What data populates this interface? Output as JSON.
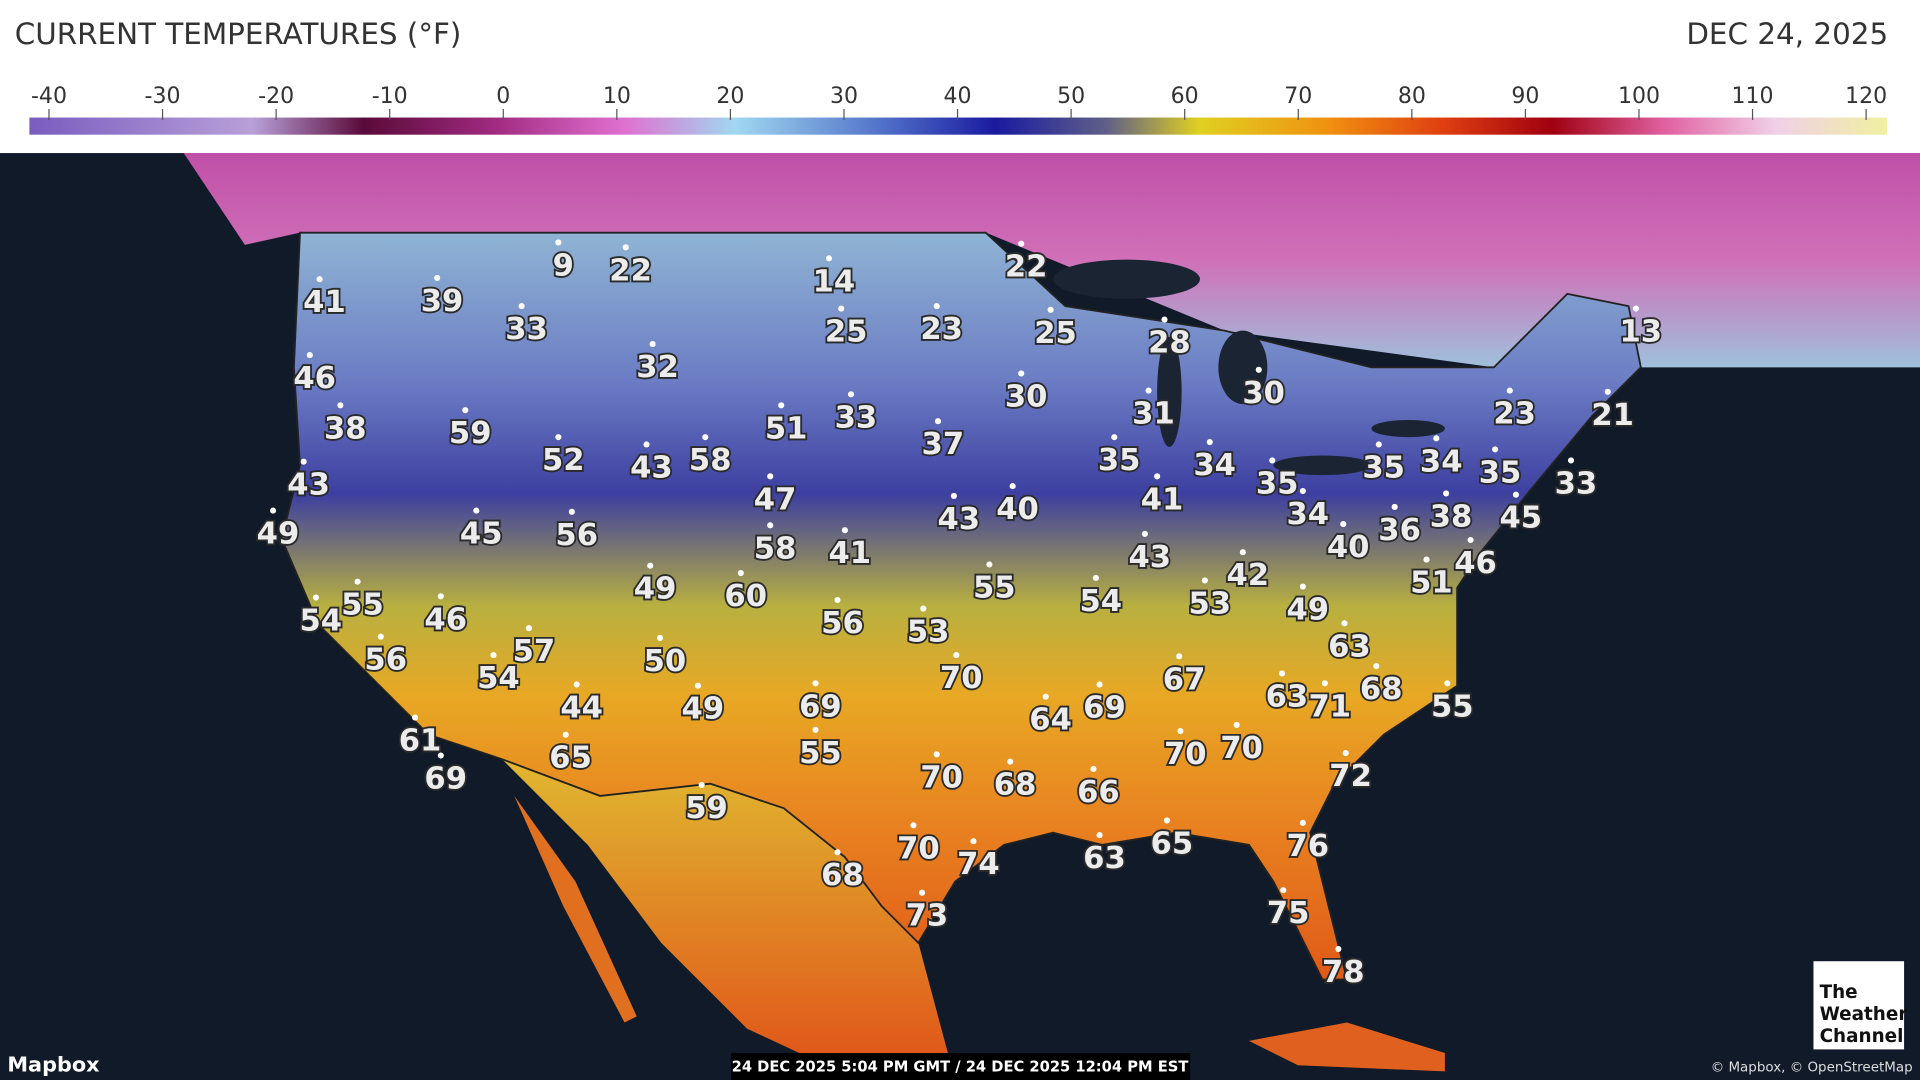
{
  "header": {
    "title": "CURRENT TEMPERATURES (°F)",
    "date": "DEC 24, 2025"
  },
  "scale": {
    "ticks": [
      -40,
      -30,
      -20,
      -10,
      0,
      10,
      20,
      30,
      40,
      50,
      60,
      70,
      80,
      90,
      100,
      110,
      120
    ]
  },
  "stations": [
    41,
    39,
    9,
    22,
    14,
    22,
    33,
    25,
    23,
    25,
    28,
    13,
    46,
    32,
    30,
    31,
    30,
    23,
    21,
    38,
    59,
    51,
    33,
    37,
    52,
    43,
    58,
    35,
    34,
    35,
    35,
    34,
    35,
    33,
    43,
    47,
    41,
    43,
    40,
    34,
    38,
    45,
    49,
    45,
    56,
    58,
    41,
    36,
    40,
    46,
    43,
    42,
    51,
    55,
    54,
    53,
    49,
    49,
    60,
    54,
    55,
    46,
    56,
    53,
    63,
    57,
    56,
    54,
    50,
    70,
    67,
    63,
    71,
    68,
    55,
    44,
    49,
    69,
    64,
    69,
    61,
    65,
    55,
    70,
    68,
    70,
    70,
    72,
    66,
    69,
    59,
    70,
    74,
    63,
    65,
    76,
    68,
    73,
    75,
    78
  ],
  "footer": {
    "brand": "Mapbox",
    "timestamp": "24 DEC 2025 5:04 PM GMT / 24 DEC 2025 12:04 PM EST",
    "attribution": "© Mapbox, © OpenStreetMap",
    "logo": [
      "The",
      "Weather",
      "Channel"
    ]
  }
}
